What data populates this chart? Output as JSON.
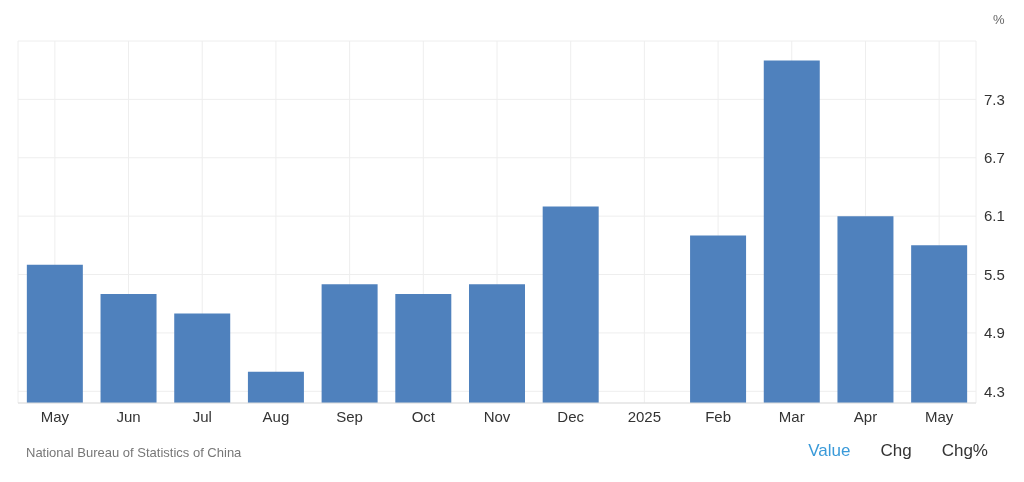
{
  "chart_data": {
    "type": "bar",
    "ylabel": "%",
    "categories": [
      "May",
      "Jun",
      "Jul",
      "Aug",
      "Sep",
      "Oct",
      "Nov",
      "Dec",
      "2025",
      "Feb",
      "Mar",
      "Apr",
      "May"
    ],
    "values": [
      5.6,
      5.3,
      5.1,
      4.5,
      5.4,
      5.3,
      5.4,
      6.2,
      null,
      5.9,
      7.7,
      6.1,
      5.8
    ],
    "color": "#4f81bd",
    "ylim": [
      4.18,
      7.9
    ],
    "yticks": [
      4.3,
      4.9,
      5.5,
      6.1,
      6.7,
      7.3
    ],
    "grid": true,
    "annotations": [
      "National Bureau of Statistics of China",
      "Value",
      "Chg",
      "Chg%"
    ]
  }
}
